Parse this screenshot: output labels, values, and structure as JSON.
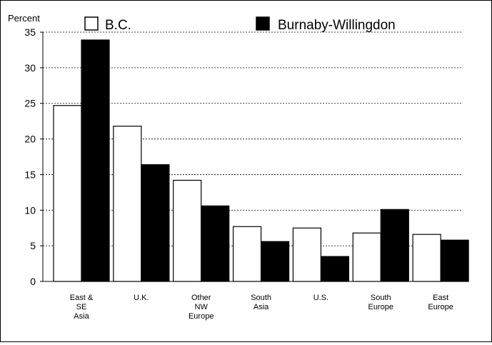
{
  "chart_data": {
    "type": "bar",
    "ylabel": "Percent",
    "xlabel": "",
    "title": "",
    "ylim": [
      0,
      35
    ],
    "yticks": [
      0,
      5,
      10,
      15,
      20,
      25,
      30,
      35
    ],
    "grid": "horizontal dashed",
    "legend_position": "top",
    "categories": [
      [
        "East &",
        "SE",
        "Asia"
      ],
      [
        "U.K."
      ],
      [
        "Other",
        "NW",
        "Europe"
      ],
      [
        "South",
        "Asia"
      ],
      [
        "U.S."
      ],
      [
        "South",
        "Europe"
      ],
      [
        "East",
        "Europe"
      ]
    ],
    "series": [
      {
        "name": "B.C.",
        "color": "#ffffff",
        "values": [
          24.7,
          21.8,
          14.2,
          7.7,
          7.5,
          6.8,
          6.6
        ]
      },
      {
        "name": "Burnaby-Willingdon",
        "color": "#000000",
        "values": [
          33.9,
          16.4,
          10.6,
          5.6,
          3.5,
          10.1,
          5.8
        ]
      }
    ]
  }
}
